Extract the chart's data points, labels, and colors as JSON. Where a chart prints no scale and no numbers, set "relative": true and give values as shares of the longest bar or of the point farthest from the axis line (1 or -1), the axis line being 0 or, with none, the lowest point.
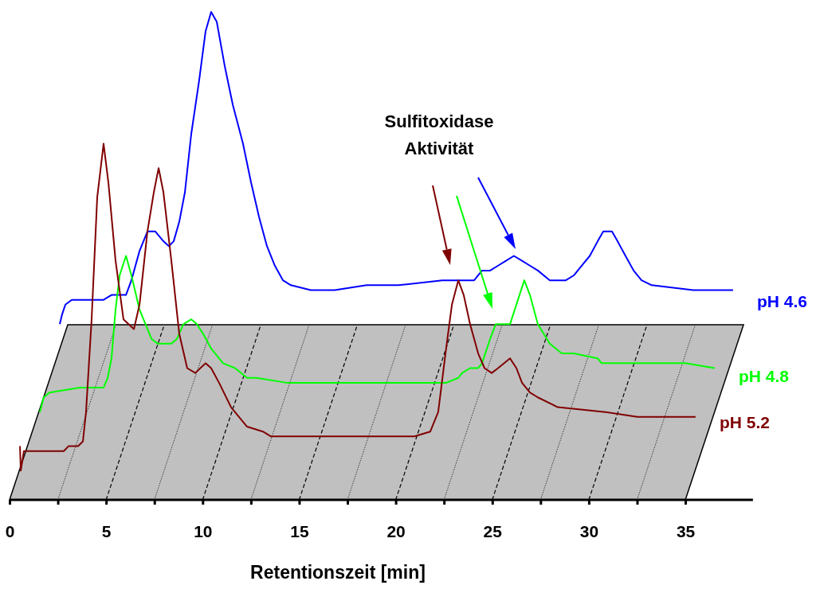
{
  "chart_data": {
    "type": "line",
    "relative": true,
    "xlabel": "Retentionszeit [min]",
    "xlim": [
      0,
      38.5
    ],
    "xticks": [
      0,
      {
        "value": 2.5,
        "label": null
      },
      5,
      {
        "value": 7.5,
        "label": null
      },
      10,
      {
        "value": 12.5,
        "label": null
      },
      15,
      {
        "value": 17.5,
        "label": null
      },
      20,
      {
        "value": 22.5,
        "label": null
      },
      25,
      {
        "value": 27.5,
        "label": null
      },
      30,
      {
        "value": 32.5,
        "label": null
      },
      35
    ],
    "marker": "none",
    "line_style": "solid",
    "annotations": [
      "Sulfitoxidase\nAktivität"
    ],
    "series": [
      {
        "name": "pH 4.6",
        "color": "#0000ff",
        "x": [
          2.6,
          2.72,
          2.89,
          3.22,
          3.43,
          4.87,
          5.28,
          6.03,
          6.31,
          6.73,
          7.14,
          7.55,
          7.97,
          8.25,
          8.5,
          8.79,
          9.08,
          9.41,
          9.82,
          10.15,
          10.44,
          10.73,
          11.14,
          11.56,
          12.09,
          12.51,
          12.92,
          13.33,
          13.74,
          14.16,
          14.57,
          15.6,
          16.84,
          18.49,
          20.14,
          22.41,
          23.65,
          24.06,
          24.47,
          24.89,
          25.3,
          25.71,
          26.12,
          26.54,
          26.95,
          27.36,
          27.98,
          28.81,
          29.22,
          29.63,
          30.05,
          30.46,
          30.75,
          31.2,
          31.49,
          31.9,
          32.32,
          32.73,
          33.26,
          35.41,
          37.47
        ],
        "values": [
          0.36,
          0.38,
          0.4,
          0.41,
          0.41,
          0.41,
          0.42,
          0.42,
          0.45,
          0.51,
          0.55,
          0.55,
          0.53,
          0.52,
          0.53,
          0.57,
          0.63,
          0.75,
          0.86,
          0.96,
          1,
          0.98,
          0.89,
          0.81,
          0.73,
          0.65,
          0.58,
          0.52,
          0.48,
          0.45,
          0.44,
          0.43,
          0.43,
          0.44,
          0.44,
          0.45,
          0.45,
          0.45,
          0.47,
          0.47,
          0.48,
          0.49,
          0.5,
          0.49,
          0.48,
          0.47,
          0.45,
          0.45,
          0.46,
          0.48,
          0.5,
          0.53,
          0.55,
          0.55,
          0.53,
          0.5,
          0.47,
          0.45,
          0.44,
          0.43,
          0.43
        ]
      },
      {
        "name": "pH 4.8",
        "color": "#00ff00",
        "x": [
          1.57,
          1.77,
          2.06,
          3.63,
          4.87,
          5.08,
          5.28,
          5.49,
          5.7,
          6.03,
          6.31,
          6.73,
          7.35,
          7.68,
          8.38,
          8.67,
          9,
          9.41,
          9.7,
          10.03,
          10.44,
          11.06,
          11.68,
          12.3,
          12.79,
          14.36,
          22.62,
          23.24,
          23.44,
          23.85,
          24.27,
          24.47,
          24.89,
          25.18,
          25.92,
          26.33,
          26.66,
          26.95,
          27.36,
          27.98,
          28.6,
          29.22,
          30.46,
          30.66,
          35,
          36.52
        ],
        "values": [
          0.18,
          0.21,
          0.22,
          0.23,
          0.23,
          0.25,
          0.29,
          0.39,
          0.46,
          0.5,
          0.46,
          0.39,
          0.33,
          0.32,
          0.32,
          0.33,
          0.36,
          0.37,
          0.36,
          0.34,
          0.31,
          0.28,
          0.27,
          0.25,
          0.25,
          0.24,
          0.24,
          0.25,
          0.26,
          0.27,
          0.27,
          0.28,
          0.33,
          0.36,
          0.36,
          0.41,
          0.45,
          0.42,
          0.36,
          0.32,
          0.3,
          0.3,
          0.29,
          0.28,
          0.28,
          0.27
        ]
      },
      {
        "name": "pH 5.2",
        "color": "#800000",
        "x": [
          0.54,
          0.58,
          0.74,
          1.07,
          2.81,
          3.05,
          3.43,
          3.55,
          3.8,
          3.96,
          4.25,
          4.54,
          4.87,
          5.12,
          5.49,
          5.9,
          6.44,
          6.73,
          7.14,
          7.47,
          7.72,
          7.97,
          8.38,
          8.79,
          9.2,
          9.62,
          10.15,
          10.44,
          10.85,
          11.47,
          12.3,
          13.12,
          13.54,
          20.97,
          21.79,
          22.2,
          22.61,
          22.91,
          23.24,
          23.52,
          23.85,
          24.27,
          24.6,
          24.97,
          25.3,
          25.92,
          26.25,
          26.54,
          26.95,
          27.36,
          28.39,
          30.87,
          32.52,
          34.17,
          35.53
        ],
        "values": [
          0.11,
          0.06,
          0.1,
          0.1,
          0.1,
          0.11,
          0.11,
          0.11,
          0.12,
          0.18,
          0.37,
          0.62,
          0.73,
          0.65,
          0.49,
          0.37,
          0.35,
          0.4,
          0.55,
          0.63,
          0.68,
          0.63,
          0.49,
          0.34,
          0.27,
          0.26,
          0.28,
          0.27,
          0.24,
          0.19,
          0.15,
          0.14,
          0.13,
          0.13,
          0.14,
          0.18,
          0.31,
          0.4,
          0.45,
          0.42,
          0.36,
          0.3,
          0.27,
          0.26,
          0.27,
          0.29,
          0.27,
          0.24,
          0.22,
          0.21,
          0.19,
          0.18,
          0.17,
          0.17,
          0.17
        ]
      }
    ]
  }
}
